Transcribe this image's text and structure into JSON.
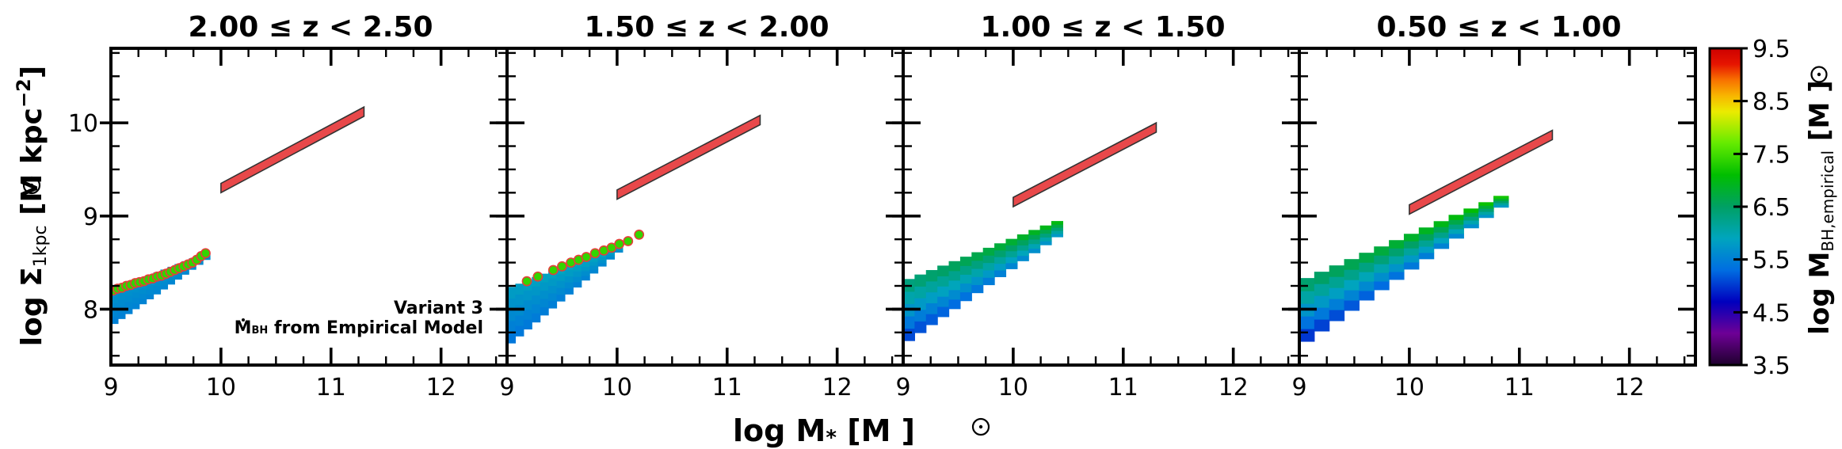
{
  "chart_data": {
    "type": "scatter",
    "figure": {
      "xlabel_pre": "log M",
      "xlabel_sub": "*",
      "xlabel_post": "[M",
      "xlabel_close": "]",
      "ylabel_pre": "log Σ",
      "ylabel_sub": "1kpc",
      "ylabel_post": "[M",
      "ylabel_unit": "kpc",
      "ylabel_exp": "−2",
      "ylabel_close": "]",
      "xlim": [
        9,
        12.6
      ],
      "ylim": [
        7.4,
        10.8
      ],
      "xticks": [
        "9",
        "10",
        "11",
        "12"
      ],
      "yticks": [
        "8",
        "9",
        "10"
      ],
      "annotation_line1": "Variant 3",
      "annotation_line2_a": "M",
      "annotation_line2_sub": "BH",
      "annotation_line2_b": "from Empirical Model"
    },
    "colorbar": {
      "label_pre": "log M",
      "label_sub": "BH,empirical",
      "label_post": "[M",
      "label_close": "]",
      "range": [
        3.5,
        9.5
      ],
      "ticks": [
        "9.5",
        "8.5",
        "7.5",
        "6.5",
        "5.5",
        "4.5",
        "3.5"
      ],
      "colormap": "nipy_spectral"
    },
    "panels": [
      {
        "title": "2.00  ≤  z  <  2.50",
        "band": {
          "xmin": 10.0,
          "xmax": 11.3,
          "y_lo_at_xmin": 9.25,
          "y_lo_at_xmax": 10.07,
          "width": 0.1
        },
        "distribution": {
          "x_start": 9.0,
          "x_end": 9.9,
          "upper_start": 8.2,
          "upper_end": 8.62,
          "lower_start": 7.82,
          "lower_end": 8.56,
          "c_low": 5.5,
          "c_high": 5.8
        },
        "points": {
          "x": [
            9.02,
            9.06,
            9.1,
            9.14,
            9.18,
            9.22,
            9.26,
            9.3,
            9.34,
            9.38,
            9.42,
            9.46,
            9.5,
            9.54,
            9.58,
            9.62,
            9.66,
            9.7,
            9.74,
            9.78,
            9.82,
            9.86
          ],
          "y": [
            8.2,
            8.22,
            8.23,
            8.25,
            8.26,
            8.28,
            8.29,
            8.3,
            8.32,
            8.33,
            8.35,
            8.36,
            8.38,
            8.4,
            8.42,
            8.44,
            8.46,
            8.48,
            8.5,
            8.53,
            8.57,
            8.6
          ],
          "c": 7.4
        }
      },
      {
        "title": "1.50  ≤  z  <  2.00",
        "band": {
          "xmin": 10.0,
          "xmax": 11.3,
          "y_lo_at_xmin": 9.18,
          "y_lo_at_xmax": 9.98,
          "width": 0.1
        },
        "distribution": {
          "x_start": 9.0,
          "x_end": 10.05,
          "upper_start": 8.22,
          "upper_end": 8.72,
          "lower_start": 7.6,
          "lower_end": 8.65,
          "c_low": 5.4,
          "c_high": 6.0
        },
        "points": {
          "x": [
            9.18,
            9.28,
            9.42,
            9.5,
            9.58,
            9.65,
            9.72,
            9.8,
            9.88,
            9.95,
            10.02,
            10.1,
            10.2
          ],
          "y": [
            8.3,
            8.35,
            8.42,
            8.46,
            8.5,
            8.53,
            8.56,
            8.6,
            8.63,
            8.66,
            8.7,
            8.73,
            8.8
          ],
          "c": 7.4
        }
      },
      {
        "title": "1.00  ≤  z  <  1.50",
        "band": {
          "xmin": 10.0,
          "xmax": 11.3,
          "y_lo_at_xmin": 9.1,
          "y_lo_at_xmax": 9.9,
          "width": 0.1
        },
        "distribution": {
          "x_start": 9.0,
          "x_end": 10.45,
          "upper_start": 8.3,
          "upper_end": 8.97,
          "lower_start": 7.62,
          "lower_end": 8.82,
          "c_low": 5.1,
          "c_high": 7.0
        },
        "points": null
      },
      {
        "title": "0.50  ≤  z  <  1.00",
        "band": {
          "xmin": 10.0,
          "xmax": 11.3,
          "y_lo_at_xmin": 9.02,
          "y_lo_at_xmax": 9.82,
          "width": 0.1
        },
        "distribution": {
          "x_start": 9.0,
          "x_end": 10.9,
          "upper_start": 8.3,
          "upper_end": 9.25,
          "lower_start": 7.6,
          "lower_end": 9.15,
          "c_low": 5.0,
          "c_high": 7.2
        },
        "points": null
      }
    ]
  }
}
